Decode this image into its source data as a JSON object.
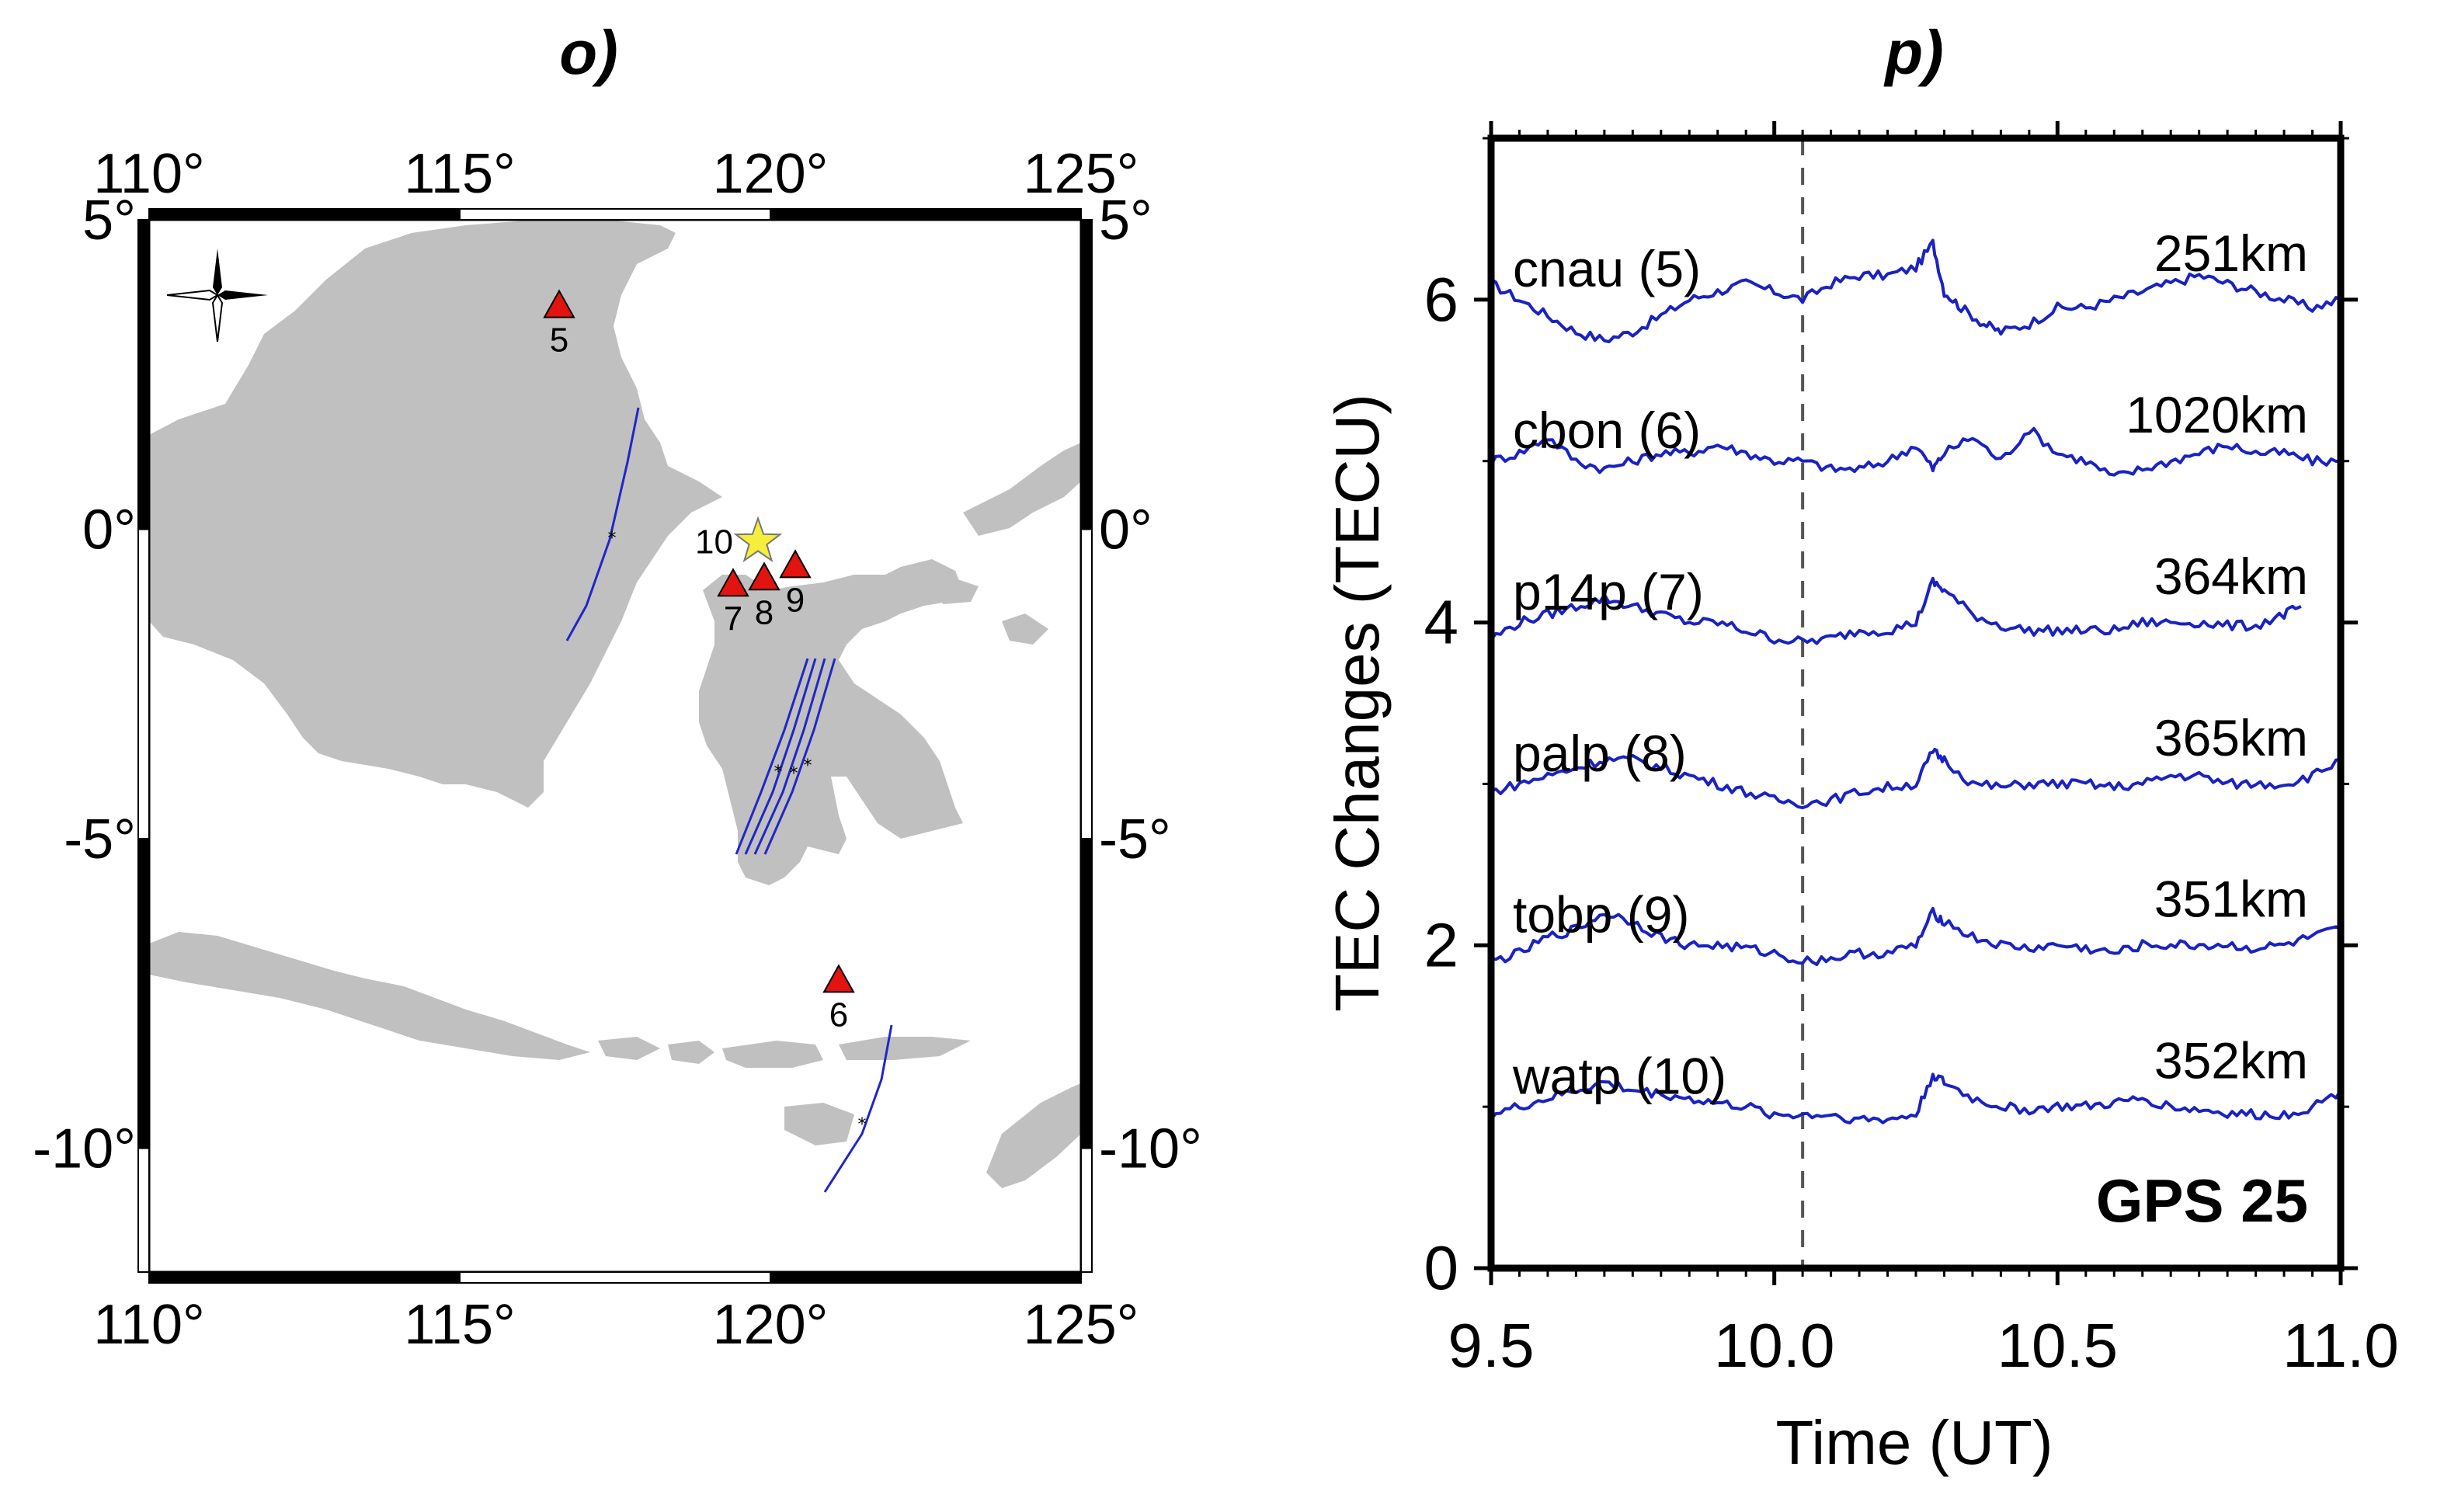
{
  "chart_data": [
    {
      "type": "map",
      "panel_label": "o)",
      "lon_range": [
        110,
        125
      ],
      "lat_range": [
        -12,
        5
      ],
      "lon_ticks": [
        {
          "value": 110,
          "label": "110°"
        },
        {
          "value": 115,
          "label": "115°"
        },
        {
          "value": 120,
          "label": "120°"
        },
        {
          "value": 125,
          "label": "125°"
        }
      ],
      "lat_ticks": [
        {
          "value": 5,
          "label": "5°"
        },
        {
          "value": 0,
          "label": "0°"
        },
        {
          "value": -5,
          "label": "-5°"
        },
        {
          "value": -10,
          "label": "-10°"
        }
      ],
      "epicenter": {
        "label": "10",
        "lon": 119.8,
        "lat": -0.2,
        "color": "#f5ee3b"
      },
      "stations": [
        {
          "label": "5",
          "lon": 116.6,
          "lat": 3.6
        },
        {
          "label": "7",
          "lon": 119.4,
          "lat": -0.9
        },
        {
          "label": "8",
          "lon": 119.9,
          "lat": -0.8
        },
        {
          "label": "9",
          "lon": 120.4,
          "lat": -0.6
        },
        {
          "label": "6",
          "lon": 121.1,
          "lat": -7.3
        }
      ],
      "station_color": "#e3130f",
      "land_color": "#c0c0c0",
      "track_color": "#2027c7"
    },
    {
      "type": "line",
      "panel_label": "p)",
      "xlabel": "Time (UT)",
      "ylabel": "TEC Changes (TECU)",
      "xlim": [
        9.5,
        11.0
      ],
      "ylim": [
        0,
        7
      ],
      "x_ticks": [
        {
          "value": 9.5,
          "label": "9.5"
        },
        {
          "value": 10.0,
          "label": "10.0"
        },
        {
          "value": 10.5,
          "label": "10.5"
        },
        {
          "value": 11.0,
          "label": "11.0"
        }
      ],
      "y_ticks": [
        {
          "value": 0,
          "label": "0"
        },
        {
          "value": 2,
          "label": "2"
        },
        {
          "value": 4,
          "label": "4"
        },
        {
          "value": 6,
          "label": "6"
        }
      ],
      "event_time": 10.05,
      "annotation": "GPS 25",
      "line_color": "#1a22c2",
      "series": [
        {
          "name": "cnau (5)",
          "distance": "251km",
          "offset": 6,
          "x": [
            9.5,
            9.55,
            9.6,
            9.65,
            9.7,
            9.75,
            9.8,
            9.85,
            9.9,
            9.95,
            10.0,
            10.05,
            10.1,
            10.15,
            10.2,
            10.25,
            10.28,
            10.3,
            10.33,
            10.37,
            10.4,
            10.45,
            10.5,
            10.55,
            10.6,
            10.65,
            10.7,
            10.75,
            10.8,
            10.85,
            10.9,
            10.95,
            11.0
          ],
          "y": [
            6.1,
            6.0,
            5.9,
            5.8,
            5.75,
            5.8,
            5.9,
            6.0,
            6.05,
            6.1,
            6.05,
            6.0,
            6.1,
            6.15,
            6.15,
            6.2,
            6.35,
            6.05,
            5.95,
            5.85,
            5.8,
            5.85,
            5.95,
            5.95,
            6.0,
            6.05,
            6.1,
            6.15,
            6.1,
            6.05,
            6.0,
            5.95,
            6.0
          ]
        },
        {
          "name": "cbon (6)",
          "distance": "1020km",
          "offset": 5,
          "x": [
            9.5,
            9.55,
            9.6,
            9.65,
            9.7,
            9.75,
            9.8,
            9.85,
            9.9,
            9.95,
            10.0,
            10.05,
            10.1,
            10.15,
            10.2,
            10.25,
            10.28,
            10.3,
            10.35,
            10.4,
            10.45,
            10.5,
            10.55,
            10.6,
            10.65,
            10.7,
            10.75,
            10.8,
            10.85,
            10.9,
            10.95,
            11.0
          ],
          "y": [
            5.0,
            5.05,
            5.15,
            5.0,
            4.95,
            5.0,
            5.05,
            5.05,
            5.1,
            5.05,
            5.0,
            5.0,
            4.95,
            4.95,
            5.0,
            5.1,
            4.95,
            5.05,
            5.15,
            5.0,
            5.2,
            5.05,
            5.0,
            4.9,
            4.95,
            5.0,
            5.05,
            5.1,
            5.05,
            5.05,
            5.0,
            5.0
          ]
        },
        {
          "name": "p14p (7)",
          "distance": "364km",
          "offset": 4,
          "x": [
            9.5,
            9.55,
            9.6,
            9.65,
            9.7,
            9.75,
            9.8,
            9.85,
            9.9,
            9.95,
            10.0,
            10.05,
            10.1,
            10.15,
            10.2,
            10.25,
            10.28,
            10.3,
            10.35,
            10.4,
            10.45,
            10.5,
            10.55,
            10.6,
            10.65,
            10.7,
            10.75,
            10.8,
            10.85,
            10.9,
            10.93
          ],
          "y": [
            3.9,
            4.0,
            4.05,
            4.1,
            4.15,
            4.1,
            4.05,
            4.0,
            4.0,
            3.95,
            3.9,
            3.88,
            3.9,
            3.95,
            3.95,
            4.0,
            4.25,
            4.2,
            4.05,
            3.98,
            3.95,
            3.95,
            3.95,
            3.95,
            4.0,
            4.0,
            4.0,
            3.98,
            3.98,
            4.05,
            4.1
          ]
        },
        {
          "name": "palp (8)",
          "distance": "365km",
          "offset": 3,
          "x": [
            9.5,
            9.55,
            9.6,
            9.65,
            9.7,
            9.75,
            9.8,
            9.85,
            9.9,
            9.95,
            10.0,
            10.05,
            10.1,
            10.15,
            10.2,
            10.25,
            10.28,
            10.3,
            10.35,
            10.4,
            10.45,
            10.5,
            10.55,
            10.6,
            10.65,
            10.7,
            10.75,
            10.8,
            10.85,
            10.9,
            10.95,
            11.0
          ],
          "y": [
            2.95,
            3.0,
            3.05,
            3.1,
            3.15,
            3.15,
            3.1,
            3.05,
            3.0,
            2.95,
            2.9,
            2.88,
            2.9,
            2.95,
            2.98,
            3.0,
            3.2,
            3.15,
            3.0,
            2.98,
            3.0,
            3.0,
            3.0,
            2.98,
            3.0,
            3.05,
            3.05,
            3.0,
            3.0,
            3.0,
            3.05,
            3.15
          ]
        },
        {
          "name": "tobp (9)",
          "distance": "351km",
          "offset": 2,
          "x": [
            9.5,
            9.55,
            9.6,
            9.65,
            9.7,
            9.75,
            9.8,
            9.85,
            9.9,
            9.95,
            10.0,
            10.05,
            10.1,
            10.15,
            10.2,
            10.25,
            10.28,
            10.3,
            10.35,
            10.4,
            10.45,
            10.5,
            10.55,
            10.6,
            10.65,
            10.7,
            10.75,
            10.8,
            10.85,
            10.9,
            10.95,
            11.0
          ],
          "y": [
            1.9,
            1.95,
            2.05,
            2.1,
            2.2,
            2.15,
            2.05,
            2.0,
            2.0,
            1.98,
            1.95,
            1.9,
            1.92,
            1.95,
            1.95,
            2.0,
            2.2,
            2.15,
            2.05,
            2.0,
            1.98,
            2.0,
            1.98,
            1.95,
            2.0,
            2.0,
            2.0,
            2.0,
            1.98,
            2.0,
            2.05,
            2.1
          ]
        },
        {
          "name": "watp (10)",
          "distance": "352km",
          "offset": 1,
          "x": [
            9.5,
            9.55,
            9.6,
            9.65,
            9.7,
            9.75,
            9.8,
            9.85,
            9.9,
            9.95,
            10.0,
            10.05,
            10.1,
            10.15,
            10.2,
            10.25,
            10.28,
            10.3,
            10.35,
            10.4,
            10.45,
            10.5,
            10.55,
            10.6,
            10.65,
            10.7,
            10.75,
            10.8,
            10.85,
            10.9,
            10.95,
            11.0
          ],
          "y": [
            0.95,
            1.0,
            1.05,
            1.1,
            1.15,
            1.1,
            1.08,
            1.05,
            1.02,
            1.0,
            0.95,
            0.95,
            0.95,
            0.92,
            0.92,
            0.95,
            1.2,
            1.15,
            1.05,
            1.0,
            0.98,
            1.0,
            1.0,
            1.02,
            1.05,
            1.0,
            0.98,
            0.96,
            0.95,
            0.95,
            1.0,
            1.1
          ]
        }
      ]
    }
  ]
}
